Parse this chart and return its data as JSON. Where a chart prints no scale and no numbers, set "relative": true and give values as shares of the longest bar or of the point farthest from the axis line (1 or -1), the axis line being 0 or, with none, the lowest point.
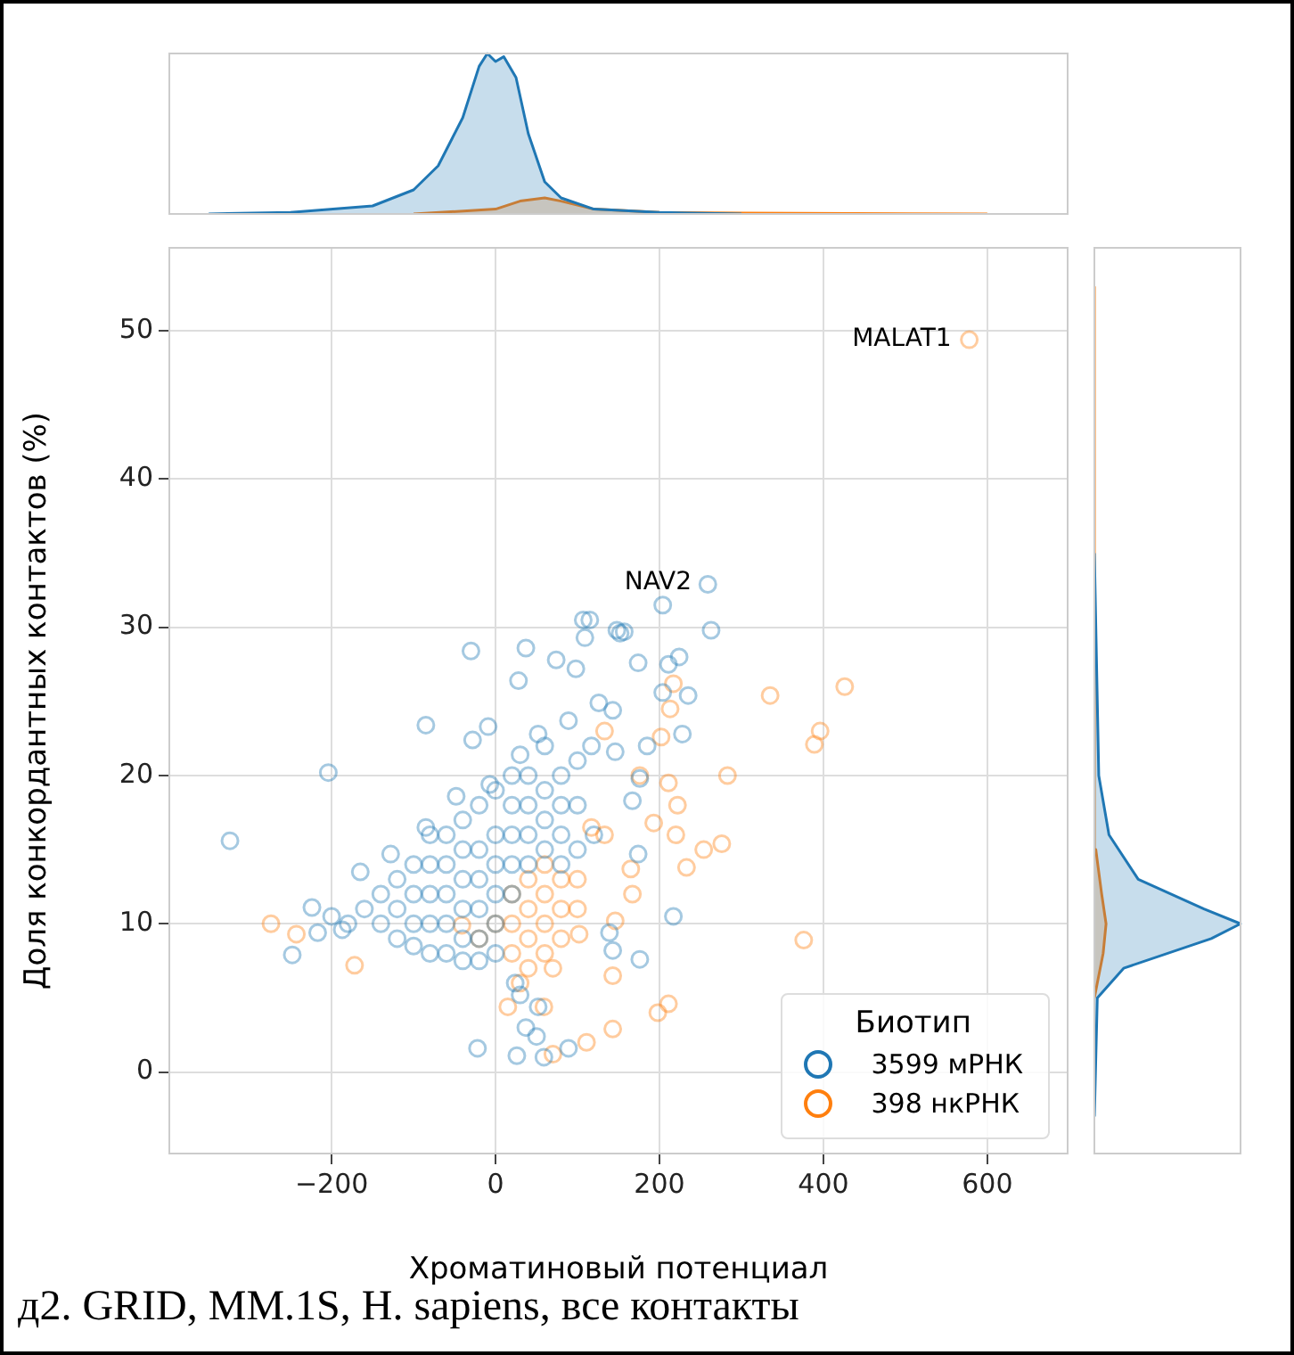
{
  "chart_data": [
    {
      "type": "area",
      "relative": true,
      "xlim": [
        -398,
        698
      ],
      "xticks": [
        -200,
        0,
        200,
        400,
        600
      ],
      "tick_labels": false,
      "grid": false,
      "legend": false,
      "series": [
        {
          "color": "#1f77b4",
          "x": [
            -350,
            -250,
            -150,
            -100,
            -70,
            -40,
            -20,
            -10,
            0,
            10,
            25,
            40,
            60,
            80,
            120,
            200,
            300
          ],
          "values": [
            0,
            0.01,
            0.05,
            0.15,
            0.3,
            0.6,
            0.92,
            1,
            0.95,
            0.98,
            0.85,
            0.5,
            0.2,
            0.1,
            0.03,
            0.01,
            0
          ]
        },
        {
          "color": "#ff7f0e",
          "x": [
            -100,
            0,
            30,
            60,
            80,
            120,
            200,
            300,
            600
          ],
          "values": [
            0,
            0.03,
            0.08,
            0.1,
            0.08,
            0.03,
            0.01,
            0.005,
            0
          ]
        }
      ]
    },
    {
      "type": "scatter",
      "xlabel": "Хроматиновый потенциал",
      "ylabel": "Доля конкордантных контактов (%)",
      "legend_title": "Биотип",
      "legend": "bottom right",
      "grid": true,
      "marker": "circle",
      "xlim": [
        -398,
        698
      ],
      "ylim": [
        -5.5,
        55.6
      ],
      "xticks": [
        -200,
        0,
        200,
        400,
        600
      ],
      "yticks": [
        0,
        10,
        20,
        30,
        40,
        50
      ],
      "annotations": [
        {
          "text": "MALAT1",
          "x": 578,
          "y": 49.4
        },
        {
          "text": "NAV2",
          "x": 261,
          "y": 33
        },
        "д2. GRID, MM.1S, H. sapiens, все контакты"
      ],
      "series": [
        {
          "name": "3599 мРНК",
          "color": "#1f77b4",
          "x": [
            -324,
            -204,
            -85,
            -30,
            37,
            109,
            115,
            148,
            152,
            259,
            204,
            263,
            52,
            28,
            74,
            98,
            174,
            211,
            224,
            204,
            235,
            228,
            185,
            -9,
            -28,
            126,
            143,
            107,
            157,
            -224,
            -217,
            -248,
            -187,
            -165,
            -128,
            -85,
            -48,
            -7,
            30,
            89,
            117,
            146,
            176,
            167,
            174,
            217,
            139,
            143,
            176,
            52,
            37,
            50,
            -22,
            26,
            59,
            89,
            24,
            30,
            -140,
            -140,
            -120,
            -120,
            -120,
            -100,
            -100,
            -100,
            -100,
            -80,
            -80,
            -80,
            -80,
            -80,
            -60,
            -60,
            -60,
            -60,
            -60,
            -40,
            -40,
            -40,
            -40,
            -40,
            -40,
            -20,
            -20,
            -20,
            -20,
            -20,
            -20,
            0,
            0,
            0,
            0,
            0,
            0,
            20,
            20,
            20,
            20,
            20,
            40,
            40,
            40,
            40,
            60,
            60,
            60,
            60,
            80,
            80,
            80,
            80,
            100,
            100,
            100,
            120,
            -160,
            -180,
            -200
          ],
          "values": [
            15.6,
            20.2,
            23.4,
            28.4,
            28.6,
            29.3,
            30.5,
            29.8,
            29.6,
            32.9,
            31.5,
            29.8,
            22.8,
            26.4,
            27.8,
            27.2,
            27.6,
            27.5,
            28,
            25.6,
            25.4,
            22.8,
            22,
            23.3,
            22.4,
            24.9,
            24.4,
            30.5,
            29.7,
            11.1,
            9.4,
            7.9,
            9.6,
            13.5,
            14.7,
            16.5,
            18.6,
            19.4,
            21.4,
            23.7,
            22,
            21.6,
            19.8,
            18.3,
            14.7,
            10.5,
            9.4,
            8.2,
            7.6,
            4.4,
            3,
            2.4,
            1.6,
            1.1,
            1,
            1.6,
            6,
            5.2,
            10,
            12,
            9,
            11,
            13,
            8.5,
            10,
            12,
            14,
            8,
            10,
            12,
            14,
            16,
            8,
            10,
            12,
            14,
            16,
            7.5,
            9,
            11,
            13,
            15,
            17,
            7.5,
            9,
            11,
            13,
            15,
            18,
            8,
            10,
            12,
            14,
            16,
            19,
            12,
            14,
            16,
            18,
            20,
            14,
            16,
            18,
            20,
            15,
            17,
            19,
            22,
            14,
            16,
            18,
            20,
            15,
            18,
            21,
            16,
            11,
            10,
            10.5
          ]
        },
        {
          "name": "398 нкРНК",
          "color": "#ff7f0e",
          "x": [
            578,
            335,
            426,
            396,
            389,
            217,
            213,
            202,
            133,
            283,
            211,
            222,
            176,
            193,
            220,
            233,
            254,
            276,
            165,
            167,
            146,
            143,
            376,
            211,
            198,
            111,
            143,
            70,
            15,
            59,
            -274,
            -243,
            -172,
            -41,
            102,
            133,
            117,
            20,
            20,
            20,
            40,
            40,
            40,
            40,
            60,
            60,
            60,
            60,
            80,
            80,
            80,
            100,
            100,
            0,
            -20,
            30,
            70
          ],
          "values": [
            49.4,
            25.4,
            26,
            23,
            22.1,
            26.2,
            24.5,
            22.6,
            23,
            20,
            19.5,
            18,
            20,
            16.8,
            16,
            13.8,
            15,
            15.4,
            13.7,
            12,
            10.2,
            6.5,
            8.9,
            4.6,
            4,
            2,
            2.9,
            1.2,
            4.4,
            4.4,
            10,
            9.3,
            7.2,
            9.9,
            9.3,
            16,
            16.5,
            8,
            10,
            12,
            7,
            9,
            11,
            13,
            8,
            10,
            12,
            14,
            9,
            11,
            13,
            11,
            13,
            10,
            9,
            6,
            7
          ]
        }
      ]
    },
    {
      "type": "area",
      "orientation": "horizontal",
      "relative": true,
      "ylim": [
        -5.5,
        55.6
      ],
      "yticks": [
        0,
        10,
        20,
        30,
        40,
        50
      ],
      "tick_labels": false,
      "grid": false,
      "legend": false,
      "series": [
        {
          "color": "#1f77b4",
          "x": [
            -3,
            5,
            7,
            9,
            10,
            11,
            13,
            16,
            20,
            35
          ],
          "values": [
            0,
            0.02,
            0.2,
            0.8,
            1,
            0.75,
            0.3,
            0.1,
            0.03,
            0
          ]
        },
        {
          "color": "#ff7f0e",
          "x": [
            5,
            8,
            10,
            12,
            15,
            53
          ],
          "values": [
            0,
            0.06,
            0.08,
            0.05,
            0.01,
            0
          ]
        }
      ]
    }
  ]
}
